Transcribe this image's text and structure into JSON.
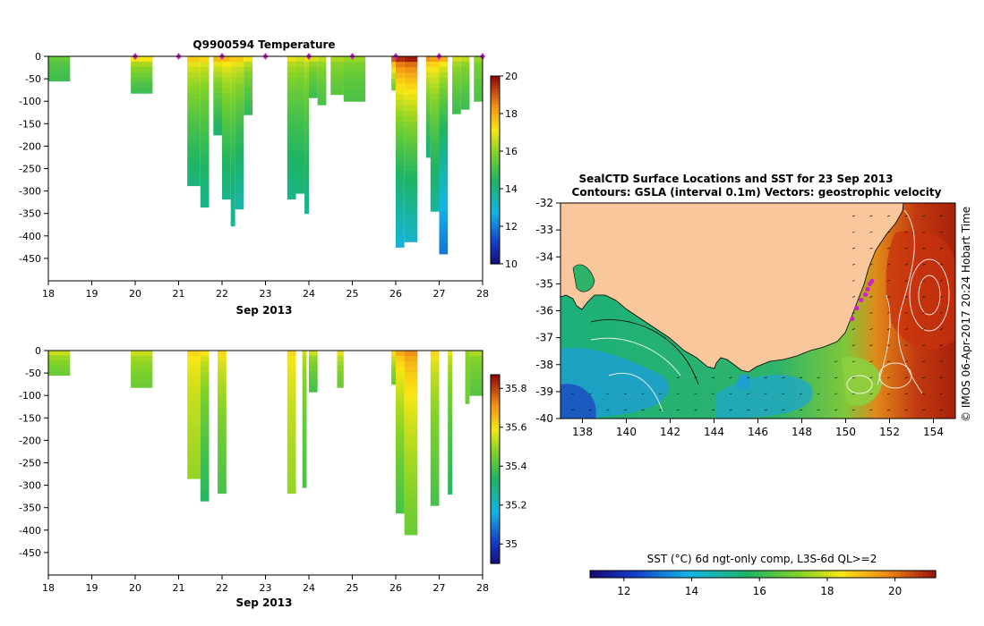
{
  "chart_data": [
    {
      "type": "heatmap",
      "id": "temperature",
      "title": "Q9900594  Temperature",
      "xlabel": "Sep 2013",
      "ylabel": "",
      "xlim": [
        18,
        28
      ],
      "ylim": [
        -500,
        0
      ],
      "xticks": [
        "18",
        "19",
        "20",
        "21",
        "22",
        "23",
        "24",
        "25",
        "26",
        "27",
        "28"
      ],
      "yticks": [
        "0",
        "-50",
        "-100",
        "-150",
        "-200",
        "-250",
        "-300",
        "-350",
        "-400",
        "-450"
      ],
      "colorbar": {
        "min": 10,
        "max": 20,
        "ticks": [
          "10",
          "12",
          "14",
          "16",
          "18",
          "20"
        ]
      },
      "profile_markers_days": [
        20,
        21,
        22,
        23,
        24,
        25,
        26,
        27,
        28
      ],
      "profiles": [
        {
          "x0": 18.0,
          "x1": 18.5,
          "depth": 55,
          "surface": 15.6,
          "deep": 15.0
        },
        {
          "x0": 19.9,
          "x1": 20.4,
          "depth": 82,
          "surface": 17.2,
          "deep": 15.0
        },
        {
          "x0": 21.2,
          "x1": 21.5,
          "depth": 288,
          "surface": 17.6,
          "deep": 14.2
        },
        {
          "x0": 21.5,
          "x1": 21.7,
          "depth": 336,
          "surface": 17.4,
          "deep": 14.0
        },
        {
          "x0": 21.8,
          "x1": 22.0,
          "depth": 175,
          "surface": 17.8,
          "deep": 14.4
        },
        {
          "x0": 22.0,
          "x1": 22.2,
          "depth": 318,
          "surface": 17.8,
          "deep": 14.0
        },
        {
          "x0": 22.2,
          "x1": 22.3,
          "depth": 378,
          "surface": 17.6,
          "deep": 13.8
        },
        {
          "x0": 22.3,
          "x1": 22.5,
          "depth": 340,
          "surface": 17.6,
          "deep": 13.6
        },
        {
          "x0": 22.5,
          "x1": 22.7,
          "depth": 130,
          "surface": 17.2,
          "deep": 14.8
        },
        {
          "x0": 23.5,
          "x1": 23.7,
          "depth": 318,
          "surface": 17.0,
          "deep": 14.0
        },
        {
          "x0": 23.7,
          "x1": 23.9,
          "depth": 305,
          "surface": 16.8,
          "deep": 14.2
        },
        {
          "x0": 23.9,
          "x1": 24.0,
          "depth": 350,
          "surface": 17.0,
          "deep": 14.0
        },
        {
          "x0": 24.0,
          "x1": 24.2,
          "depth": 92,
          "surface": 16.8,
          "deep": 15.0
        },
        {
          "x0": 24.2,
          "x1": 24.4,
          "depth": 108,
          "surface": 16.6,
          "deep": 15.2
        },
        {
          "x0": 24.5,
          "x1": 24.8,
          "depth": 85,
          "surface": 16.4,
          "deep": 15.4
        },
        {
          "x0": 24.8,
          "x1": 25.3,
          "depth": 100,
          "surface": 16.2,
          "deep": 15.2
        },
        {
          "x0": 25.9,
          "x1": 26.0,
          "depth": 75,
          "surface": 19.0,
          "deep": 15.8
        },
        {
          "x0": 26.0,
          "x1": 26.2,
          "depth": 425,
          "surface": 19.6,
          "deep": 13.0
        },
        {
          "x0": 26.2,
          "x1": 26.5,
          "depth": 413,
          "surface": 19.8,
          "deep": 13.2
        },
        {
          "x0": 26.7,
          "x1": 26.8,
          "depth": 225,
          "surface": 18.4,
          "deep": 14.2
        },
        {
          "x0": 26.8,
          "x1": 27.0,
          "depth": 345,
          "surface": 18.2,
          "deep": 13.8
        },
        {
          "x0": 27.0,
          "x1": 27.2,
          "depth": 440,
          "surface": 18.0,
          "deep": 12.0
        },
        {
          "x0": 27.3,
          "x1": 27.5,
          "depth": 128,
          "surface": 16.8,
          "deep": 15.0
        },
        {
          "x0": 27.5,
          "x1": 27.7,
          "depth": 118,
          "surface": 16.6,
          "deep": 15.0
        },
        {
          "x0": 27.8,
          "x1": 28.0,
          "depth": 100,
          "surface": 16.2,
          "deep": 15.2
        }
      ]
    },
    {
      "type": "heatmap",
      "id": "salinity",
      "title": "",
      "xlabel": "Sep 2013",
      "ylabel": "",
      "xlim": [
        18,
        28
      ],
      "ylim": [
        -500,
        0
      ],
      "xticks": [
        "18",
        "19",
        "20",
        "21",
        "22",
        "23",
        "24",
        "25",
        "26",
        "27",
        "28"
      ],
      "yticks": [
        "0",
        "-50",
        "-100",
        "-150",
        "-200",
        "-250",
        "-300",
        "-350",
        "-400",
        "-450"
      ],
      "colorbar": {
        "min": 34.9,
        "max": 35.87,
        "ticks": [
          "35",
          "35.2",
          "35.4",
          "35.6",
          "35.8"
        ]
      },
      "profiles": [
        {
          "x0": 18.0,
          "x1": 18.5,
          "depth": 55,
          "surface": 35.55,
          "deep": 35.45
        },
        {
          "x0": 19.9,
          "x1": 20.4,
          "depth": 82,
          "surface": 35.55,
          "deep": 35.45
        },
        {
          "x0": 21.2,
          "x1": 21.5,
          "depth": 285,
          "surface": 35.62,
          "deep": 35.5
        },
        {
          "x0": 21.5,
          "x1": 21.7,
          "depth": 335,
          "surface": 35.6,
          "deep": 35.35
        },
        {
          "x0": 21.9,
          "x1": 22.1,
          "depth": 318,
          "surface": 35.62,
          "deep": 35.4
        },
        {
          "x0": 23.5,
          "x1": 23.7,
          "depth": 318,
          "surface": 35.62,
          "deep": 35.5
        },
        {
          "x0": 23.85,
          "x1": 23.95,
          "depth": 305,
          "surface": 35.55,
          "deep": 35.4
        },
        {
          "x0": 24.0,
          "x1": 24.2,
          "depth": 92,
          "surface": 35.55,
          "deep": 35.4
        },
        {
          "x0": 24.65,
          "x1": 24.8,
          "depth": 82,
          "surface": 35.58,
          "deep": 35.45
        },
        {
          "x0": 25.9,
          "x1": 26.0,
          "depth": 75,
          "surface": 35.62,
          "deep": 35.45
        },
        {
          "x0": 26.0,
          "x1": 26.2,
          "depth": 362,
          "surface": 35.68,
          "deep": 35.4
        },
        {
          "x0": 26.2,
          "x1": 26.5,
          "depth": 410,
          "surface": 35.72,
          "deep": 35.45
        },
        {
          "x0": 26.8,
          "x1": 27.0,
          "depth": 345,
          "surface": 35.62,
          "deep": 35.4
        },
        {
          "x0": 27.2,
          "x1": 27.3,
          "depth": 320,
          "surface": 35.58,
          "deep": 35.35
        },
        {
          "x0": 27.6,
          "x1": 27.7,
          "depth": 118,
          "surface": 35.5,
          "deep": 35.45
        },
        {
          "x0": 27.7,
          "x1": 28.0,
          "depth": 100,
          "surface": 35.52,
          "deep": 35.42
        }
      ]
    },
    {
      "type": "heatmap",
      "id": "sst_map",
      "title": "SealCTD Surface Locations and SST for 23 Sep 2013",
      "subtitle": "Contours: GSLA (interval 0.1m) Vectors: geostrophic velocity",
      "xlabel": "",
      "ylabel": "",
      "xlim": [
        137,
        155
      ],
      "ylim": [
        -40,
        -32
      ],
      "xticks": [
        "138",
        "140",
        "142",
        "144",
        "146",
        "148",
        "150",
        "152",
        "154"
      ],
      "yticks": [
        "-32",
        "-33",
        "-34",
        "-35",
        "-36",
        "-37",
        "-38",
        "-39",
        "-40"
      ],
      "colorbar": {
        "label": "SST (°C) 6d ngt-only comp, L3S-6d QL>=2",
        "min": 11,
        "max": 21.2,
        "ticks": [
          "12",
          "14",
          "16",
          "18",
          "20"
        ]
      },
      "track_points": [
        {
          "lon": 150.3,
          "lat": -36.3
        },
        {
          "lon": 150.5,
          "lat": -35.9
        },
        {
          "lon": 150.7,
          "lat": -35.6
        },
        {
          "lon": 150.9,
          "lat": -35.4
        },
        {
          "lon": 151.0,
          "lat": -35.2
        },
        {
          "lon": 151.1,
          "lat": -35.0
        },
        {
          "lon": 151.2,
          "lat": -34.9
        }
      ],
      "credit": "© IMOS 06-Apr-2017 20:24 Hobart Time"
    }
  ],
  "colors": {
    "land": "#f8c79b",
    "marker": "#cc22cc",
    "axis": "#000000"
  }
}
